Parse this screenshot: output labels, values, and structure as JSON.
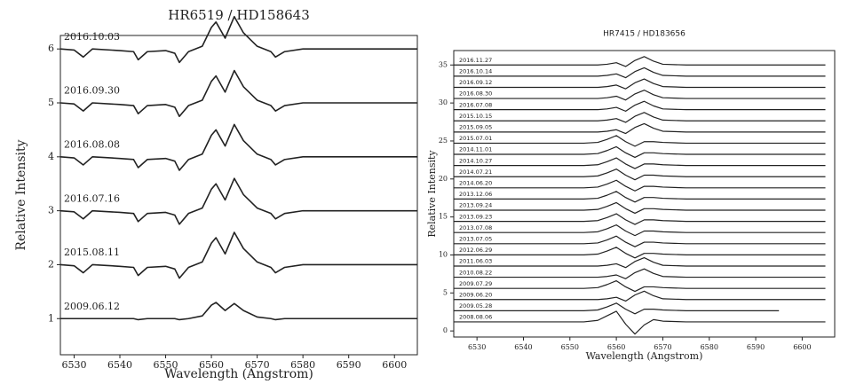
{
  "chart_data": [
    {
      "type": "line",
      "title": "HR6519 / HD158643",
      "x_label": "Wavelength (Angstrom)",
      "y_label": "Relative Intensity",
      "color": "#222",
      "xlim": [
        6527,
        6605
      ],
      "ylim": [
        0.33,
        6.25
      ],
      "xticks": [
        6530,
        6540,
        6550,
        6560,
        6570,
        6580,
        6590,
        6600
      ],
      "yticks": [
        1,
        2,
        3,
        4,
        5,
        6
      ],
      "x": [
        6527,
        6530,
        6532,
        6534,
        6540,
        6543,
        6544,
        6546,
        6550,
        6552,
        6553,
        6555,
        6558,
        6560,
        6561,
        6563,
        6565,
        6567,
        6570,
        6573,
        6574,
        6576,
        6580,
        6590,
        6605
      ],
      "series": [
        {
          "name": "2016.10.03",
          "values": [
            6,
            5.98,
            5.85,
            6,
            5.97,
            5.95,
            5.8,
            5.95,
            5.97,
            5.92,
            5.75,
            5.95,
            6.05,
            6.4,
            6.5,
            6.2,
            6.6,
            6.3,
            6.05,
            5.95,
            5.85,
            5.95,
            6,
            6,
            6
          ]
        },
        {
          "name": "2016.09.30",
          "values": [
            5,
            4.98,
            4.85,
            5,
            4.97,
            4.95,
            4.8,
            4.95,
            4.97,
            4.92,
            4.75,
            4.95,
            5.05,
            5.4,
            5.5,
            5.2,
            5.6,
            5.3,
            5.05,
            4.95,
            4.85,
            4.95,
            5,
            5,
            5
          ]
        },
        {
          "name": "2016.08.08",
          "values": [
            4,
            3.98,
            3.85,
            4,
            3.97,
            3.95,
            3.8,
            3.95,
            3.97,
            3.92,
            3.75,
            3.95,
            4.05,
            4.4,
            4.5,
            4.2,
            4.6,
            4.3,
            4.05,
            3.95,
            3.85,
            3.95,
            4,
            4,
            4
          ]
        },
        {
          "name": "2016.07.16",
          "values": [
            3,
            2.98,
            2.85,
            3,
            2.97,
            2.95,
            2.8,
            2.95,
            2.97,
            2.92,
            2.75,
            2.95,
            3.05,
            3.4,
            3.5,
            3.2,
            3.6,
            3.3,
            3.05,
            2.95,
            2.85,
            2.95,
            3,
            3,
            3
          ]
        },
        {
          "name": "2015.08.11",
          "values": [
            2,
            1.98,
            1.85,
            2,
            1.97,
            1.95,
            1.8,
            1.95,
            1.97,
            1.92,
            1.75,
            1.95,
            2.05,
            2.4,
            2.5,
            2.2,
            2.6,
            2.3,
            2.05,
            1.95,
            1.85,
            1.95,
            2,
            2,
            2
          ]
        },
        {
          "name": "2009.06.12",
          "values": [
            1,
            1,
            1,
            1,
            1,
            1,
            0.98,
            1,
            1,
            1,
            0.98,
            1,
            1.05,
            1.25,
            1.3,
            1.15,
            1.28,
            1.15,
            1.03,
            1,
            0.98,
            1,
            1,
            1,
            1
          ]
        }
      ]
    },
    {
      "type": "line",
      "title": "HR7415 / HD183656",
      "x_label": "Wavelength (Angstrom)",
      "y_label": "Relative Intensity",
      "color": "#222",
      "xlim": [
        6525,
        6607
      ],
      "ylim": [
        -0.8,
        36.9
      ],
      "xticks": [
        6530,
        6540,
        6550,
        6560,
        6570,
        6580,
        6590,
        6600
      ],
      "yticks": [
        0,
        5,
        10,
        15,
        20,
        25,
        30,
        35
      ],
      "x": [
        6525,
        6535,
        6545,
        6550,
        6553,
        6556,
        6558,
        6560,
        6562,
        6564,
        6566,
        6568,
        6570,
        6575,
        6585,
        6595,
        6605
      ],
      "series": [
        {
          "name": "2016.11.27",
          "values": [
            35,
            35,
            35,
            35,
            35,
            35,
            35.1,
            35.3,
            34.8,
            35.6,
            36.1,
            35.5,
            35.1,
            35,
            35,
            35,
            35
          ]
        },
        {
          "name": "2016.10.14",
          "values": [
            33.53,
            33.53,
            33.53,
            33.53,
            33.53,
            33.53,
            33.63,
            33.83,
            33.33,
            34.13,
            34.63,
            34.03,
            33.63,
            33.53,
            33.53,
            33.53,
            33.53
          ]
        },
        {
          "name": "2016.09.12",
          "values": [
            32.06,
            32.06,
            32.06,
            32.06,
            32.06,
            32.06,
            32.16,
            32.36,
            31.86,
            32.66,
            33.16,
            32.56,
            32.16,
            32.06,
            32.06,
            32.06,
            32.06
          ]
        },
        {
          "name": "2016.08.30",
          "values": [
            30.59,
            30.59,
            30.59,
            30.59,
            30.59,
            30.59,
            30.69,
            30.89,
            30.39,
            31.19,
            31.69,
            31.09,
            30.69,
            30.59,
            30.59,
            30.59,
            30.59
          ]
        },
        {
          "name": "2016.07.08",
          "values": [
            29.12,
            29.12,
            29.12,
            29.12,
            29.12,
            29.12,
            29.22,
            29.42,
            28.92,
            29.72,
            30.22,
            29.62,
            29.22,
            29.12,
            29.12,
            29.12,
            29.12
          ]
        },
        {
          "name": "2015.10.15",
          "values": [
            27.65,
            27.65,
            27.65,
            27.65,
            27.65,
            27.65,
            27.75,
            27.95,
            27.45,
            28.25,
            28.75,
            28.15,
            27.75,
            27.65,
            27.65,
            27.65,
            27.65
          ]
        },
        {
          "name": "2015.09.05",
          "values": [
            26.18,
            26.18,
            26.18,
            26.18,
            26.18,
            26.18,
            26.28,
            26.48,
            25.98,
            26.78,
            27.28,
            26.68,
            26.28,
            26.18,
            26.18,
            26.18,
            26.18
          ]
        },
        {
          "name": "2015.07.01",
          "values": [
            24.71,
            24.71,
            24.71,
            24.71,
            24.71,
            24.81,
            25.21,
            25.71,
            24.91,
            24.31,
            24.91,
            24.91,
            24.81,
            24.71,
            24.71,
            24.71,
            24.71
          ]
        },
        {
          "name": "2014.11.01",
          "values": [
            23.24,
            23.24,
            23.24,
            23.24,
            23.24,
            23.34,
            23.74,
            24.24,
            23.44,
            22.84,
            23.44,
            23.44,
            23.34,
            23.24,
            23.24,
            23.24,
            23.24
          ]
        },
        {
          "name": "2014.10.27",
          "values": [
            21.77,
            21.77,
            21.77,
            21.77,
            21.77,
            21.87,
            22.27,
            22.77,
            21.97,
            21.37,
            21.97,
            21.97,
            21.87,
            21.77,
            21.77,
            21.77,
            21.77
          ]
        },
        {
          "name": "2014.07.21",
          "values": [
            20.3,
            20.3,
            20.3,
            20.3,
            20.3,
            20.4,
            20.8,
            21.3,
            20.5,
            19.9,
            20.5,
            20.5,
            20.4,
            20.3,
            20.3,
            20.3,
            20.3
          ]
        },
        {
          "name": "2014.06.20",
          "values": [
            18.83,
            18.83,
            18.83,
            18.83,
            18.83,
            18.93,
            19.33,
            19.83,
            19.03,
            18.43,
            19.03,
            19.03,
            18.93,
            18.83,
            18.83,
            18.83,
            18.83
          ]
        },
        {
          "name": "2013.12.06",
          "values": [
            17.36,
            17.36,
            17.36,
            17.36,
            17.36,
            17.46,
            17.86,
            18.36,
            17.56,
            16.96,
            17.56,
            17.56,
            17.46,
            17.36,
            17.36,
            17.36,
            17.36
          ]
        },
        {
          "name": "2013.09.24",
          "values": [
            15.89,
            15.89,
            15.89,
            15.89,
            15.89,
            15.99,
            16.39,
            16.89,
            16.09,
            15.49,
            16.09,
            16.09,
            15.99,
            15.89,
            15.89,
            15.89,
            15.89
          ]
        },
        {
          "name": "2013.09.23",
          "values": [
            14.42,
            14.42,
            14.42,
            14.42,
            14.42,
            14.52,
            14.92,
            15.42,
            14.62,
            14.02,
            14.62,
            14.62,
            14.52,
            14.42,
            14.42,
            14.42,
            14.42
          ]
        },
        {
          "name": "2013.07.08",
          "values": [
            12.95,
            12.95,
            12.95,
            12.95,
            12.95,
            13.05,
            13.45,
            13.95,
            13.15,
            12.55,
            13.15,
            13.15,
            13.05,
            12.95,
            12.95,
            12.95,
            12.95
          ]
        },
        {
          "name": "2013.07.05",
          "values": [
            11.48,
            11.48,
            11.48,
            11.48,
            11.48,
            11.58,
            11.98,
            12.48,
            11.68,
            11.08,
            11.68,
            11.68,
            11.58,
            11.48,
            11.48,
            11.48,
            11.48
          ]
        },
        {
          "name": "2012.06.29",
          "values": [
            10.01,
            10.01,
            10.01,
            10.01,
            10.01,
            10.11,
            10.51,
            11.01,
            10.21,
            9.61,
            10.21,
            10.21,
            10.11,
            10.01,
            10.01,
            10.01,
            10.01
          ]
        },
        {
          "name": "2011.06.03",
          "values": [
            8.54,
            8.54,
            8.54,
            8.54,
            8.54,
            8.54,
            8.64,
            8.84,
            8.34,
            9.14,
            9.64,
            9.04,
            8.64,
            8.54,
            8.54,
            8.54,
            8.54
          ]
        },
        {
          "name": "2010.08.22",
          "values": [
            7.07,
            7.07,
            7.07,
            7.07,
            7.07,
            7.07,
            7.17,
            7.37,
            6.87,
            7.67,
            8.17,
            7.57,
            7.17,
            7.07,
            7.07,
            7.07,
            7.07
          ]
        },
        {
          "name": "2009.07.29",
          "values": [
            5.6,
            5.6,
            5.6,
            5.6,
            5.6,
            5.7,
            6.1,
            6.6,
            5.8,
            5.2,
            5.8,
            5.8,
            5.7,
            5.6,
            5.6,
            5.6,
            5.6
          ]
        },
        {
          "name": "2009.06.20",
          "values": [
            4.13,
            4.13,
            4.13,
            4.13,
            4.13,
            4.13,
            4.23,
            4.43,
            3.93,
            4.73,
            5.23,
            4.63,
            4.23,
            4.13,
            4.13,
            4.13,
            4.13
          ]
        },
        {
          "name": "2009.05.28",
          "values": [
            2.66,
            2.66,
            2.66,
            2.66,
            2.66,
            2.76,
            3.16,
            3.66,
            2.86,
            2.26,
            2.86,
            2.86,
            2.76,
            2.66,
            2.66,
            2.66,
            null
          ]
        },
        {
          "name": "2008.08.06",
          "values": [
            1.19,
            1.19,
            1.19,
            1.19,
            1.19,
            1.39,
            1.99,
            2.59,
            0.89,
            -0.41,
            0.79,
            1.49,
            1.29,
            1.19,
            1.19,
            1.19,
            1.19
          ]
        }
      ]
    }
  ]
}
